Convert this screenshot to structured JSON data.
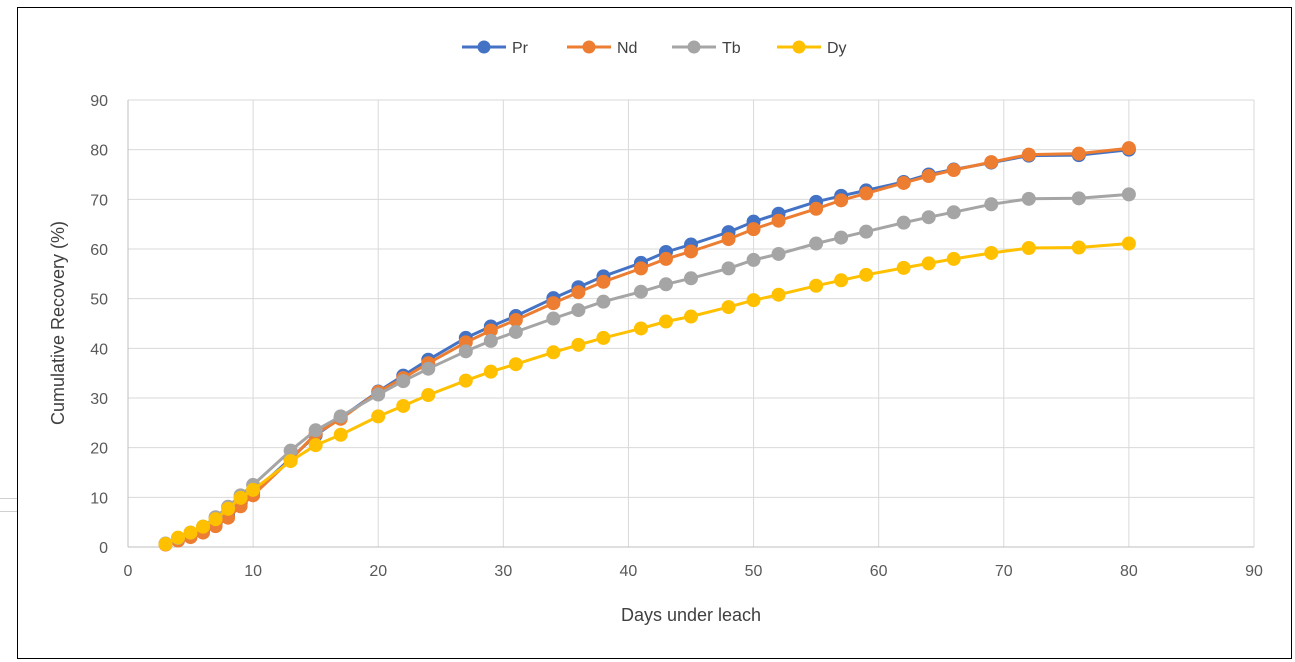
{
  "chart_data": {
    "type": "line",
    "title": "",
    "xlabel": "Days under leach",
    "ylabel": "Cumulative Recovery (%)",
    "xlim": [
      0,
      90
    ],
    "ylim": [
      0,
      90
    ],
    "xticks": [
      0,
      10,
      20,
      30,
      40,
      50,
      60,
      70,
      80,
      90
    ],
    "yticks": [
      0,
      10,
      20,
      30,
      40,
      50,
      60,
      70,
      80,
      90
    ],
    "grid": true,
    "legend_position": "top",
    "x": [
      3,
      4,
      5,
      6,
      7,
      8,
      9,
      10,
      13,
      15,
      17,
      20,
      22,
      24,
      27,
      29,
      31,
      34,
      36,
      38,
      41,
      43,
      45,
      48,
      50,
      52,
      55,
      57,
      59,
      62,
      64,
      66,
      69,
      72,
      76,
      80
    ],
    "series": [
      {
        "name": "Pr",
        "color": "#4472C4",
        "values": [
          0.6,
          1.5,
          2.4,
          3.4,
          4.8,
          6.5,
          8.8,
          11,
          17.8,
          22.5,
          26,
          31.3,
          34.5,
          37.7,
          42.1,
          44.4,
          46.5,
          50.1,
          52.3,
          54.5,
          57.2,
          59.4,
          60.9,
          63.4,
          65.5,
          67.1,
          69.5,
          70.7,
          71.8,
          73.5,
          75,
          76,
          77.4,
          78.8,
          78.9,
          80
        ]
      },
      {
        "name": "Nd",
        "color": "#ED7D31",
        "values": [
          0.5,
          1.3,
          2.0,
          2.9,
          4.2,
          5.9,
          8.2,
          10.4,
          17.6,
          22.8,
          25.8,
          31.2,
          34.0,
          37.0,
          41.2,
          43.6,
          45.7,
          49.1,
          51.3,
          53.4,
          56.1,
          58.0,
          59.5,
          62.0,
          64.0,
          65.7,
          68.1,
          69.8,
          71.2,
          73.3,
          74.7,
          75.9,
          77.5,
          79.0,
          79.2,
          80.3
        ]
      },
      {
        "name": "Tb",
        "color": "#A5A5A5",
        "values": [
          0.7,
          1.8,
          2.9,
          4.1,
          6.0,
          8.1,
          10.4,
          12.5,
          19.4,
          23.5,
          26.3,
          30.7,
          33.4,
          35.9,
          39.4,
          41.5,
          43.3,
          46.0,
          47.7,
          49.4,
          51.4,
          52.9,
          54.1,
          56.1,
          57.8,
          59.0,
          61.1,
          62.3,
          63.5,
          65.3,
          66.4,
          67.4,
          69.0,
          70.1,
          70.2,
          71.0
        ]
      },
      {
        "name": "Dy",
        "color": "#FFC000",
        "values": [
          0.6,
          1.9,
          2.9,
          4.1,
          5.6,
          7.7,
          9.9,
          11.5,
          17.3,
          20.5,
          22.6,
          26.3,
          28.4,
          30.6,
          33.5,
          35.3,
          36.8,
          39.2,
          40.7,
          42.1,
          44.0,
          45.4,
          46.4,
          48.3,
          49.7,
          50.8,
          52.6,
          53.7,
          54.8,
          56.2,
          57.1,
          58.0,
          59.2,
          60.2,
          60.3,
          61.1
        ]
      }
    ]
  }
}
